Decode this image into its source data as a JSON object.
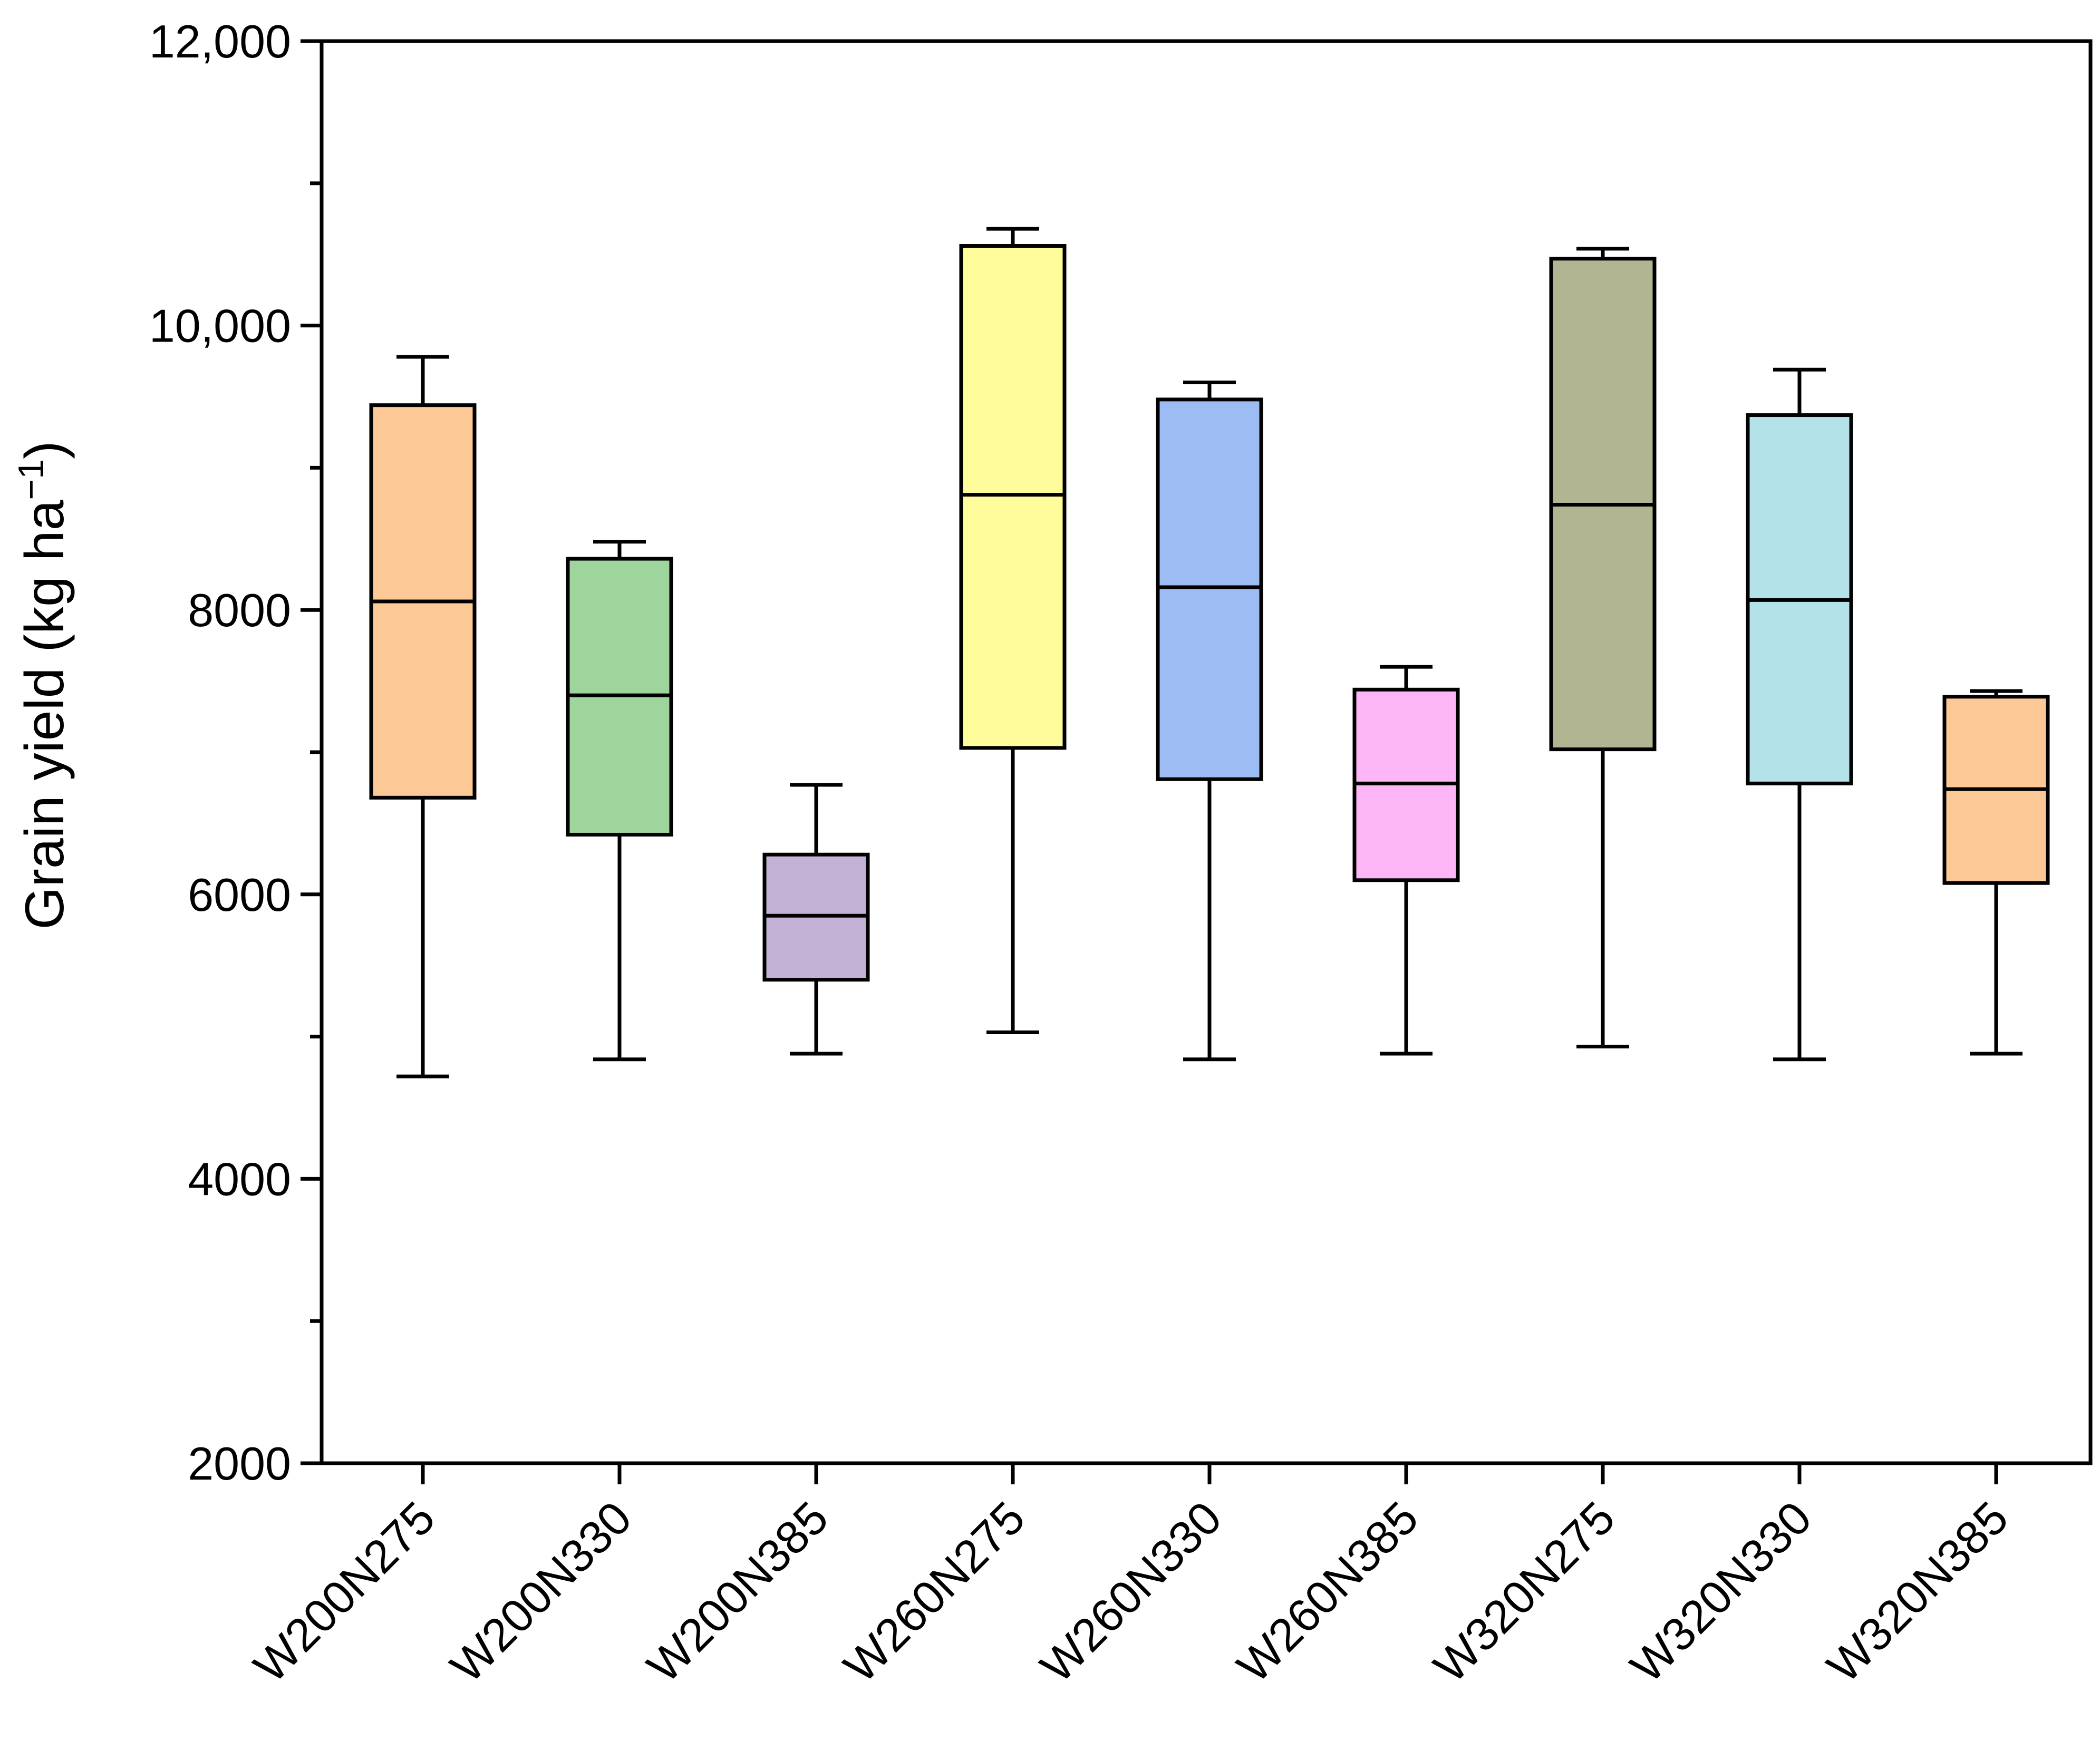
{
  "chart_data": {
    "type": "box",
    "title": "",
    "xlabel": "",
    "ylabel": "Grain yield (kg ha",
    "ylabel_unit_superscript": "−1",
    "ylabel_close": ")",
    "ylim": [
      2000,
      12000
    ],
    "yticks": [
      2000,
      4000,
      6000,
      8000,
      10000,
      12000
    ],
    "ytick_labels": [
      "2000",
      "4000",
      "6000",
      "8000",
      "10,000",
      "12,000"
    ],
    "yminor_ticks": [
      3000,
      5000,
      7000,
      9000,
      11000
    ],
    "grid": false,
    "legend": "none",
    "categories": [
      "W200N275",
      "W200N330",
      "W200N385",
      "W260N275",
      "W260N330",
      "W260N385",
      "W320N275",
      "W320N330",
      "W320N385"
    ],
    "boxes": [
      {
        "name": "W200N275",
        "min": 4720,
        "q1": 6680,
        "median": 8060,
        "q3": 9440,
        "max": 9780,
        "color": "#fbc896"
      },
      {
        "name": "W200N330",
        "min": 4840,
        "q1": 6420,
        "median": 7400,
        "q3": 8360,
        "max": 8480,
        "color": "#9dd59c"
      },
      {
        "name": "W200N385",
        "min": 4880,
        "q1": 5400,
        "median": 5850,
        "q3": 6280,
        "max": 6770,
        "color": "#c3b2d6"
      },
      {
        "name": "W260N275",
        "min": 5030,
        "q1": 7030,
        "median": 8810,
        "q3": 10560,
        "max": 10680,
        "color": "#fffd9b"
      },
      {
        "name": "W260N330",
        "min": 4840,
        "q1": 6810,
        "median": 8160,
        "q3": 9480,
        "max": 9600,
        "color": "#9dbcf4"
      },
      {
        "name": "W260N385",
        "min": 4880,
        "q1": 6100,
        "median": 6780,
        "q3": 7440,
        "max": 7600,
        "color": "#fcb6f6"
      },
      {
        "name": "W320N275",
        "min": 4930,
        "q1": 7020,
        "median": 8740,
        "q3": 10470,
        "max": 10540,
        "color": "#b1b591"
      },
      {
        "name": "W320N330",
        "min": 4840,
        "q1": 6780,
        "median": 8070,
        "q3": 9370,
        "max": 9690,
        "color": "#b3e3e8"
      },
      {
        "name": "W320N385",
        "min": 4880,
        "q1": 6080,
        "median": 6740,
        "q3": 7390,
        "max": 7430,
        "color": "#fbc896"
      }
    ]
  }
}
